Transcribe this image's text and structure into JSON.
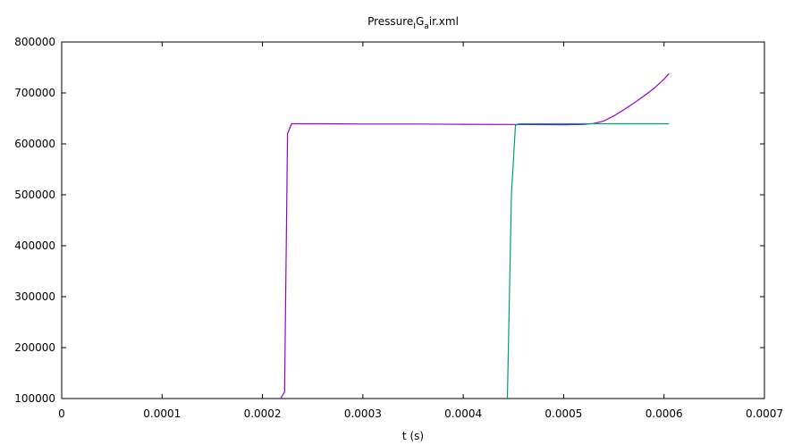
{
  "chart_data": {
    "type": "line",
    "title_parts": [
      "Pressure",
      "I",
      "G",
      "a",
      "ir.xml"
    ],
    "xlabel": "t (s)",
    "ylabel": "",
    "xlim": [
      0,
      0.0007
    ],
    "ylim": [
      100000,
      800000
    ],
    "x_ticks": [
      0,
      0.0001,
      0.0002,
      0.0003,
      0.0004,
      0.0005,
      0.0006,
      0.0007
    ],
    "x_tick_labels": [
      "0",
      "0.0001",
      "0.0002",
      "0.0003",
      "0.0004",
      "0.0005",
      "0.0006",
      "0.0007"
    ],
    "y_ticks": [
      100000,
      200000,
      300000,
      400000,
      500000,
      600000,
      700000,
      800000
    ],
    "y_tick_labels": [
      "100000",
      "200000",
      "300000",
      "400000",
      "500000",
      "600000",
      "700000",
      "800000"
    ],
    "grid": false,
    "series": [
      {
        "color": "#9400d3",
        "points": [
          [
            0.000218,
            100000
          ],
          [
            0.000222,
            113000
          ],
          [
            0.000225,
            620000
          ],
          [
            0.000229,
            639500
          ],
          [
            0.00026,
            639500
          ],
          [
            0.0003,
            639000
          ],
          [
            0.00035,
            639000
          ],
          [
            0.0004,
            638500
          ],
          [
            0.00045,
            638000
          ],
          [
            0.0005,
            637500
          ],
          [
            0.00052,
            638000
          ],
          [
            0.00053,
            640000
          ],
          [
            0.00054,
            645000
          ],
          [
            0.00055,
            655000
          ],
          [
            0.00056,
            667000
          ],
          [
            0.00057,
            680000
          ],
          [
            0.00058,
            694000
          ],
          [
            0.00059,
            709000
          ],
          [
            0.0006,
            727000
          ],
          [
            0.000605,
            738000
          ]
        ]
      },
      {
        "color": "#009e73",
        "points": [
          [
            0.000444,
            100000
          ],
          [
            0.000448,
            500000
          ],
          [
            0.000452,
            636000
          ],
          [
            0.000455,
            639500
          ],
          [
            0.0005,
            639500
          ],
          [
            0.00055,
            639500
          ],
          [
            0.0006,
            639500
          ],
          [
            0.000605,
            639500
          ]
        ]
      }
    ]
  }
}
